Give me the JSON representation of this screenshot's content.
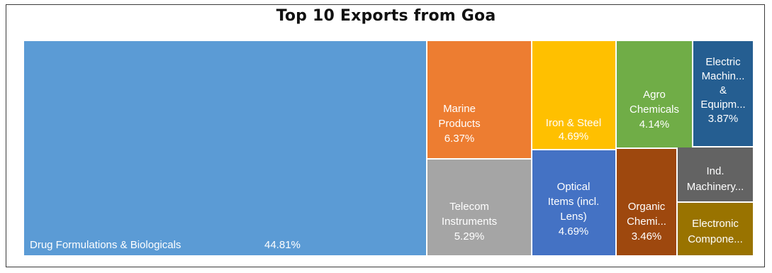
{
  "chart_data": {
    "type": "treemap",
    "title": "Top 10 Exports from Goa",
    "unit": "%",
    "items": [
      {
        "name": "Drug Formulations & Biologicals",
        "label_lines": [
          "Drug Formulations & Biologicals"
        ],
        "value": 44.81,
        "value_label": "44.81%",
        "color": "#5b9bd5"
      },
      {
        "name": "Marine Products",
        "label_lines": [
          "Marine",
          "Products"
        ],
        "value": 6.37,
        "value_label": "6.37%",
        "color": "#ed7d31"
      },
      {
        "name": "Telecom Instruments",
        "label_lines": [
          "Telecom",
          "Instruments"
        ],
        "value": 5.29,
        "value_label": "5.29%",
        "color": "#a5a5a5"
      },
      {
        "name": "Iron & Steel",
        "label_lines": [
          "Iron & Steel"
        ],
        "value": 4.69,
        "value_label": "4.69%",
        "color": "#ffc000"
      },
      {
        "name": "Optical Items (incl. Lens)",
        "label_lines": [
          "Optical",
          "Items (incl.",
          "Lens)"
        ],
        "value": 4.69,
        "value_label": "4.69%",
        "color": "#4472c4"
      },
      {
        "name": "Agro Chemicals",
        "label_lines": [
          "Agro",
          "Chemicals"
        ],
        "value": 4.14,
        "value_label": "4.14%",
        "color": "#70ad47"
      },
      {
        "name": "Electric Machin... & Equipm...",
        "label_lines": [
          "Electric",
          "Machin...",
          "&",
          "Equipm..."
        ],
        "value": 3.87,
        "value_label": "3.87%",
        "color": "#255e91"
      },
      {
        "name": "Organic Chemi...",
        "label_lines": [
          "Organic",
          "Chemi..."
        ],
        "value": 3.46,
        "value_label": "3.46%",
        "color": "#9e480e"
      },
      {
        "name": "Ind. Machinery...",
        "label_lines": [
          "Ind.",
          "Machinery..."
        ],
        "value": null,
        "value_label": "",
        "color": "#636363"
      },
      {
        "name": "Electronic Compone...",
        "label_lines": [
          "Electronic",
          "Compone..."
        ],
        "value": null,
        "value_label": "",
        "color": "#997300"
      }
    ]
  }
}
